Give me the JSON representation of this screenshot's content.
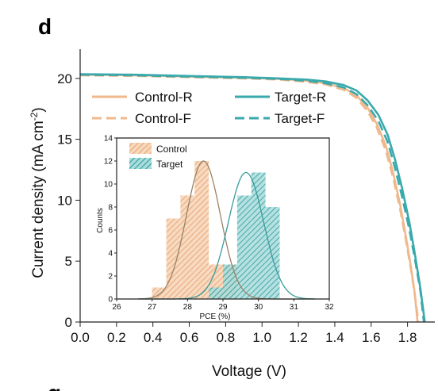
{
  "panel_label": "d",
  "next_panel_fragment": "g",
  "colors": {
    "control": "#f0b98d",
    "target": "#3aa9ac",
    "control_fit": "#9a8368",
    "target_fit": "#3a9c9c"
  },
  "chart_data": [
    {
      "type": "line",
      "title": "",
      "xlabel": "Voltage (V)",
      "ylabel": "Current density (mA cm-2)",
      "ylabel_main": "Current density (mA cm",
      "ylabel_sup": "-2",
      "ylabel_close": ")",
      "xlim": [
        0.0,
        1.95
      ],
      "ylim": [
        0,
        22.4
      ],
      "xticks": [
        0.0,
        0.2,
        0.4,
        0.6,
        0.8,
        1.0,
        1.2,
        1.4,
        1.6,
        1.8
      ],
      "xtick_labels": [
        "0.0",
        "0.2",
        "0.4",
        "0.6",
        "0.8",
        "1.0",
        "1.2",
        "1.4",
        "1.6",
        "1.8"
      ],
      "yticks": [
        0,
        5,
        10,
        15,
        20
      ],
      "ytick_labels": [
        "0",
        "5",
        "10",
        "15",
        "20"
      ],
      "legend_position": "top-right",
      "series": [
        {
          "name": "Control-R",
          "style": "solid",
          "color": "#f0b98d",
          "points": [
            [
              0.0,
              20.3
            ],
            [
              0.3,
              20.25
            ],
            [
              0.6,
              20.15
            ],
            [
              0.9,
              20.05
            ],
            [
              1.1,
              19.95
            ],
            [
              1.25,
              19.8
            ],
            [
              1.35,
              19.6
            ],
            [
              1.45,
              19.2
            ],
            [
              1.52,
              18.6
            ],
            [
              1.58,
              17.6
            ],
            [
              1.63,
              16.3
            ],
            [
              1.68,
              14.5
            ],
            [
              1.72,
              12.3
            ],
            [
              1.76,
              9.6
            ],
            [
              1.79,
              7.1
            ],
            [
              1.82,
              4.4
            ],
            [
              1.84,
              2.3
            ],
            [
              1.855,
              0.0
            ]
          ]
        },
        {
          "name": "Target-R",
          "style": "solid",
          "color": "#3aa9ac",
          "points": [
            [
              0.0,
              20.35
            ],
            [
              0.3,
              20.3
            ],
            [
              0.6,
              20.2
            ],
            [
              0.9,
              20.1
            ],
            [
              1.1,
              20.0
            ],
            [
              1.25,
              19.9
            ],
            [
              1.35,
              19.75
            ],
            [
              1.45,
              19.45
            ],
            [
              1.52,
              19.0
            ],
            [
              1.58,
              18.2
            ],
            [
              1.64,
              17.0
            ],
            [
              1.69,
              15.4
            ],
            [
              1.73,
              13.4
            ],
            [
              1.77,
              11.0
            ],
            [
              1.81,
              8.2
            ],
            [
              1.84,
              5.6
            ],
            [
              1.87,
              2.8
            ],
            [
              1.895,
              0.0
            ]
          ]
        },
        {
          "name": "Control-F",
          "style": "dashed",
          "color": "#f0b98d",
          "points": [
            [
              0.0,
              20.25
            ],
            [
              0.3,
              20.2
            ],
            [
              0.6,
              20.1
            ],
            [
              0.9,
              20.0
            ],
            [
              1.1,
              19.9
            ],
            [
              1.25,
              19.7
            ],
            [
              1.35,
              19.5
            ],
            [
              1.45,
              19.05
            ],
            [
              1.52,
              18.4
            ],
            [
              1.58,
              17.3
            ],
            [
              1.63,
              16.0
            ],
            [
              1.68,
              14.1
            ],
            [
              1.72,
              11.9
            ],
            [
              1.76,
              9.2
            ],
            [
              1.79,
              6.8
            ],
            [
              1.82,
              4.2
            ],
            [
              1.84,
              2.2
            ],
            [
              1.86,
              0.0
            ]
          ]
        },
        {
          "name": "Target-F",
          "style": "dashed",
          "color": "#3aa9ac",
          "points": [
            [
              0.0,
              20.3
            ],
            [
              0.3,
              20.25
            ],
            [
              0.6,
              20.15
            ],
            [
              0.9,
              20.05
            ],
            [
              1.1,
              19.95
            ],
            [
              1.25,
              19.8
            ],
            [
              1.35,
              19.6
            ],
            [
              1.45,
              19.25
            ],
            [
              1.52,
              18.7
            ],
            [
              1.58,
              17.8
            ],
            [
              1.64,
              16.5
            ],
            [
              1.69,
              14.8
            ],
            [
              1.73,
              12.7
            ],
            [
              1.77,
              10.3
            ],
            [
              1.81,
              7.6
            ],
            [
              1.84,
              5.2
            ],
            [
              1.87,
              2.6
            ],
            [
              1.89,
              0.0
            ]
          ]
        }
      ]
    },
    {
      "type": "bar",
      "title": "",
      "xlabel": "PCE (%)",
      "ylabel": "Counts",
      "xlim": [
        26,
        32
      ],
      "ylim": [
        0,
        14
      ],
      "xticks": [
        26,
        27,
        28,
        29,
        30,
        31,
        32
      ],
      "xtick_labels": [
        "26",
        "27",
        "28",
        "29",
        "30",
        "31",
        "32"
      ],
      "yticks": [
        0,
        2,
        4,
        6,
        8,
        10,
        12,
        14
      ],
      "ytick_labels": [
        "0",
        "2",
        "4",
        "6",
        "8",
        "10",
        "12",
        "14"
      ],
      "bin_width": 0.4,
      "legend_position": "top-left",
      "series": [
        {
          "name": "Control",
          "color": "#f0b98d",
          "bin_centers": [
            27.2,
            27.6,
            28.0,
            28.4,
            28.8,
            29.2
          ],
          "values": [
            1,
            7,
            9,
            12,
            3,
            3
          ],
          "fit_mean": 28.45,
          "fit_peak": 12,
          "fit_sigma": 0.48
        },
        {
          "name": "Target",
          "color": "#3aa9ac",
          "bin_centers": [
            28.8,
            29.2,
            29.6,
            30.0,
            30.4
          ],
          "values": [
            1,
            3,
            9,
            11,
            8
          ],
          "fit_mean": 29.65,
          "fit_peak": 11,
          "fit_sigma": 0.5
        }
      ]
    }
  ]
}
